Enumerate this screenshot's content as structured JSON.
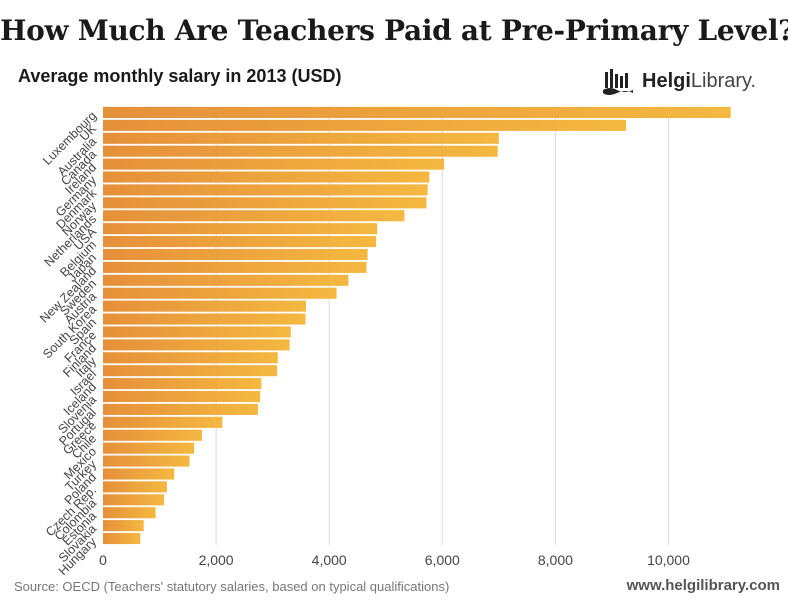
{
  "title": "How Much Are Teachers Paid at Pre-Primary Level?",
  "subtitle": "Average monthly salary in 2013 (USD)",
  "logo": {
    "bold": "Helgi",
    "light": "Library."
  },
  "source": "Source: OECD (Teachers' statutory salaries, based on typical qualifications)",
  "site": "www.helgilibrary.com",
  "colors": {
    "bar_light": "#f4b840",
    "bar_dark": "#e6903a",
    "grid": "#d9d9d9"
  },
  "chart_data": {
    "type": "bar",
    "orientation": "horizontal",
    "title": "How Much Are Teachers Paid at Pre-Primary Level?",
    "subtitle": "Average monthly salary in 2013 (USD)",
    "xlabel": "",
    "ylabel": "",
    "xlim": [
      0,
      11300
    ],
    "xticks": [
      0,
      2000,
      4000,
      6000,
      8000,
      10000
    ],
    "xtick_labels": [
      "0",
      "2,000",
      "4,000",
      "6,000",
      "8,000",
      "10,000"
    ],
    "grid": true,
    "categories": [
      "Luxembourg",
      "UK",
      "Australia",
      "Canada",
      "Ireland",
      "Germany",
      "Denmark",
      "Norway",
      "Netherlands",
      "USA",
      "Belgium",
      "Japan",
      "New Zealand",
      "Sweden",
      "Austria",
      "South Korea",
      "Spain",
      "France",
      "Finland",
      "Italy",
      "Israel",
      "Iceland",
      "Slovenia",
      "Portugal",
      "Greece",
      "Chile",
      "Mexico",
      "Turkey",
      "Poland",
      "Czech Rep.",
      "Colombia",
      "Estonia",
      "Slovakia",
      "Hungary"
    ],
    "values": [
      11100,
      9250,
      7000,
      6980,
      6030,
      5770,
      5740,
      5720,
      5330,
      4850,
      4830,
      4680,
      4660,
      4340,
      4130,
      3590,
      3580,
      3320,
      3300,
      3090,
      3080,
      2800,
      2780,
      2740,
      2110,
      1750,
      1610,
      1530,
      1260,
      1130,
      1080,
      930,
      720,
      660
    ]
  }
}
